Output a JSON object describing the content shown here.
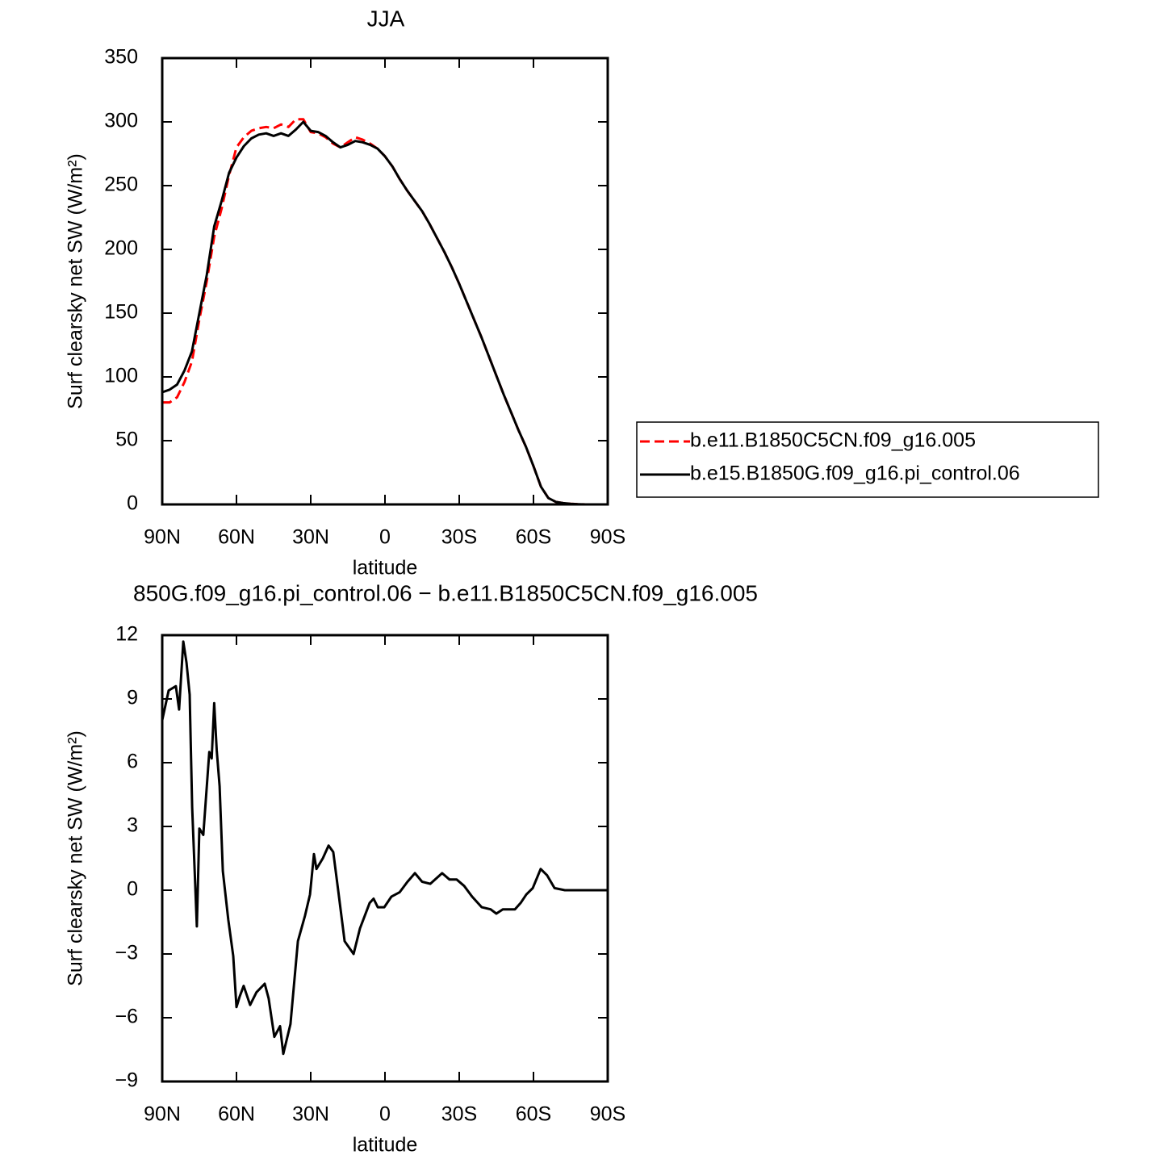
{
  "chart_data": [
    {
      "type": "line",
      "title": "JJA",
      "xlabel": "latitude",
      "ylabel": "Surf clearsky net SW (W/m²)",
      "x": [
        90,
        87,
        84,
        81,
        78,
        75,
        72,
        69,
        66,
        63,
        60,
        57,
        54,
        51,
        48,
        45,
        42,
        39,
        36,
        33,
        30,
        27,
        24,
        21,
        18,
        15,
        12,
        9,
        6,
        3,
        0,
        -3,
        -6,
        -9,
        -12,
        -15,
        -18,
        -21,
        -24,
        -27,
        -30,
        -33,
        -36,
        -39,
        -42,
        -45,
        -48,
        -51,
        -54,
        -57,
        -60,
        -63,
        -66,
        -69,
        -72,
        -75,
        -78,
        -81,
        -84,
        -87,
        -90
      ],
      "series": [
        {
          "name": "b.e11.B1850C5CN.f09_g16.005",
          "color": "#ff0000",
          "dashed": true,
          "values": [
            80,
            80,
            84,
            96,
            112,
            145,
            175,
            210,
            232,
            258,
            280,
            288,
            293,
            295,
            296,
            295,
            298,
            296,
            302,
            302,
            292,
            291,
            288,
            283,
            280,
            284,
            288,
            286,
            283,
            279,
            273,
            265,
            255,
            246,
            238,
            230,
            220,
            209,
            198,
            186,
            173,
            159,
            145,
            131,
            116,
            101,
            86,
            72,
            58,
            45,
            30,
            14,
            5,
            2,
            1,
            0.5,
            0.2,
            0,
            0,
            0,
            0
          ]
        },
        {
          "name": "b.e15.B1850G.f09_g16.pi_control.06",
          "color": "#000000",
          "dashed": false,
          "values": [
            88,
            90,
            94,
            105,
            120,
            150,
            180,
            218,
            238,
            260,
            272,
            281,
            287,
            290,
            291,
            289,
            291,
            289,
            294,
            300,
            293,
            292,
            289,
            284,
            280,
            282,
            285,
            284,
            282,
            279,
            273,
            265,
            255,
            246,
            238,
            230,
            220,
            209,
            198,
            186,
            173,
            159,
            145,
            131,
            116,
            101,
            86,
            72,
            58,
            45,
            30,
            14,
            5,
            2,
            1,
            0.5,
            0.2,
            0,
            0,
            0,
            0
          ]
        }
      ],
      "xlim": [
        90,
        -90
      ],
      "xticks": [
        {
          "value": 90,
          "label": "90N"
        },
        {
          "value": 60,
          "label": "60N"
        },
        {
          "value": 30,
          "label": "30N"
        },
        0,
        {
          "value": -30,
          "label": "30S"
        },
        {
          "value": -60,
          "label": "60S"
        },
        {
          "value": -90,
          "label": "90S"
        }
      ],
      "ylim": [
        0,
        350
      ],
      "yticks": [
        0,
        50,
        100,
        150,
        200,
        250,
        300,
        350
      ],
      "legend": "right"
    },
    {
      "type": "line",
      "title": "850G.f09_g16.pi_control.06 − b.e11.B1850C5CN.f09_g16.005",
      "xlabel": "latitude",
      "ylabel": "Surf clearsky net SW (W/m²)",
      "x": [
        90,
        87.4,
        84.5,
        83.2,
        81.5,
        80.2,
        78.9,
        77.9,
        76,
        75,
        73.4,
        71,
        70,
        69,
        68,
        66.8,
        65.5,
        63.3,
        61.3,
        60,
        58.7,
        57.1,
        54.5,
        51.9,
        48.6,
        47,
        44.7,
        42.4,
        41.1,
        38.2,
        35.2,
        32.3,
        30.3,
        28.7,
        27.7,
        25.1,
        22.8,
        20.9,
        18.9,
        16.3,
        12.7,
        10.1,
        6.2,
        4.6,
        2.9,
        0.3,
        -2.6,
        -5.9,
        -9.1,
        -12.1,
        -15,
        -18.3,
        -23.1,
        -26.1,
        -29,
        -32,
        -35.2,
        -39.1,
        -42.7,
        -45,
        -47.6,
        -52.5,
        -54.8,
        -57.1,
        -59.7,
        -62.9,
        -65.5,
        -68.5,
        -72.7,
        -90
      ],
      "values": [
        8,
        9.4,
        9.6,
        8.5,
        11.7,
        10.7,
        9.2,
        3.9,
        -1.7,
        2.9,
        2.6,
        6.5,
        6.2,
        8.8,
        6.6,
        4.9,
        0.9,
        -1.4,
        -3.1,
        -5.5,
        -5,
        -4.5,
        -5.4,
        -4.8,
        -4.4,
        -5.1,
        -6.9,
        -6.4,
        -7.7,
        -6.3,
        -2.4,
        -1.2,
        -0.2,
        1.7,
        1,
        1.5,
        2.1,
        1.8,
        0,
        -2.4,
        -3,
        -1.8,
        -0.6,
        -0.4,
        -0.8,
        -0.8,
        -0.3,
        -0.1,
        0.4,
        0.8,
        0.4,
        0.3,
        0.8,
        0.5,
        0.5,
        0.2,
        -0.3,
        -0.8,
        -0.9,
        -1.1,
        -0.9,
        -0.9,
        -0.6,
        -0.2,
        0.1,
        1,
        0.7,
        0.1,
        0,
        0
      ],
      "color": "#000000",
      "xlim": [
        90,
        -90
      ],
      "xticks": [
        {
          "value": 90,
          "label": "90N"
        },
        {
          "value": 60,
          "label": "60N"
        },
        {
          "value": 30,
          "label": "30N"
        },
        0,
        {
          "value": -30,
          "label": "30S"
        },
        {
          "value": -60,
          "label": "60S"
        },
        {
          "value": -90,
          "label": "90S"
        }
      ],
      "ylim": [
        -9,
        12
      ],
      "yticks": [
        {
          "value": -9,
          "label": "−9"
        },
        {
          "value": -6,
          "label": "−6"
        },
        {
          "value": -3,
          "label": "−3"
        },
        0,
        3,
        6,
        9,
        12
      ]
    }
  ]
}
